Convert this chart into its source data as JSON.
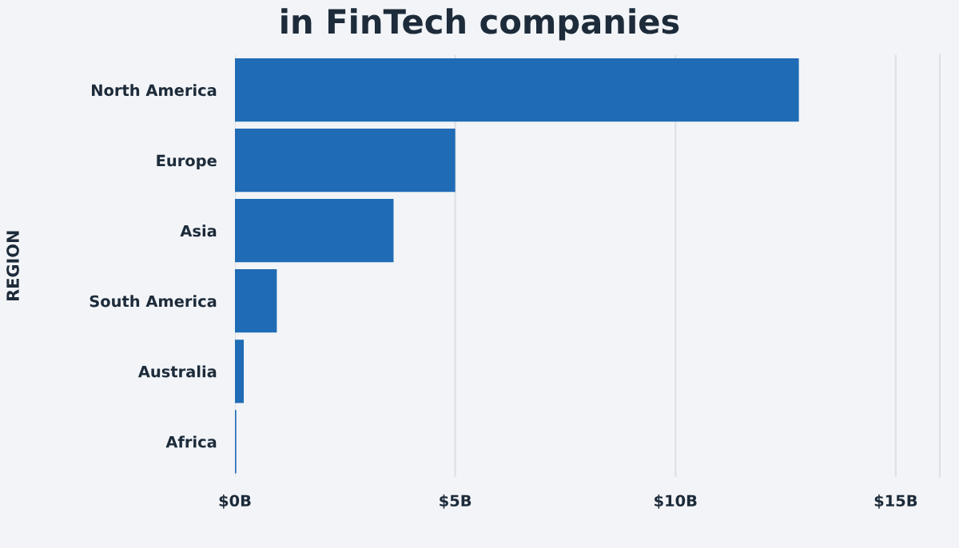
{
  "chart_data": {
    "type": "bar",
    "orientation": "horizontal",
    "title": "in FinTech companies",
    "ylabel": "REGION",
    "categories": [
      "North America",
      "Europe",
      "Asia",
      "South America",
      "Australia",
      "Africa"
    ],
    "values": [
      12.8,
      5.0,
      3.6,
      0.95,
      0.2,
      0.03
    ],
    "color": "#1f6bb5",
    "xlim": [
      0,
      16
    ],
    "xticks": [
      {
        "value": 0,
        "label": "$0B"
      },
      {
        "value": 5,
        "label": "$5B"
      },
      {
        "value": 10,
        "label": "$10B"
      },
      {
        "value": 15,
        "label": "$15B"
      }
    ],
    "grid": "x",
    "legend": false
  }
}
